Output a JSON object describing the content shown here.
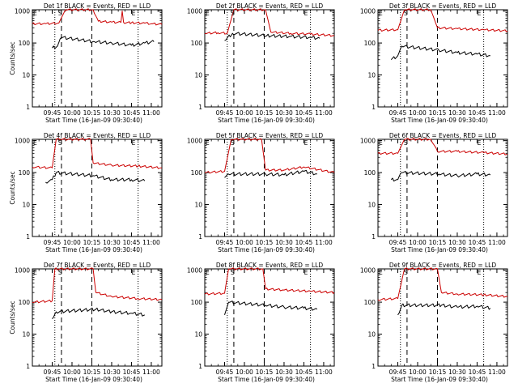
{
  "chart_data": [
    {
      "type": "line",
      "title": "Det 1f BLACK = Events, RED = LLD",
      "xlabel": "Start Time (16-Jan-09 09:30:40)",
      "ylabel": "Counts/sec",
      "x_ticks": [
        "09:45",
        "10:00",
        "10:15",
        "10:30",
        "10:45",
        "11:00"
      ],
      "y_ticks": [
        "1",
        "10",
        "100",
        "1000"
      ],
      "ylim": [
        1,
        1100
      ],
      "log_y": true,
      "markers": [
        "S",
        "E"
      ],
      "series": [
        {
          "values": [
            {
              "x": "09:30",
              "y": 400
            },
            {
              "x": "09:40",
              "y": 400
            },
            {
              "x": "09:50",
              "y": 420
            },
            {
              "x": "09:55",
              "y": 1100
            },
            {
              "x": "10:16",
              "y": 1100
            },
            {
              "x": "10:20",
              "y": 480
            },
            {
              "x": "10:30",
              "y": 450
            },
            {
              "x": "10:37",
              "y": 440
            },
            {
              "x": "10:38",
              "y": 1000
            },
            {
              "x": "10:39",
              "y": 440
            },
            {
              "x": "10:45",
              "y": 430
            },
            {
              "x": "10:55",
              "y": 420
            },
            {
              "x": "11:00",
              "y": 400
            },
            {
              "x": "11:08",
              "y": 380
            }
          ]
        },
        {
          "values": [
            {
              "x": "09:45",
              "y": 70
            },
            {
              "x": "09:49",
              "y": 80
            },
            {
              "x": "09:52",
              "y": 150
            },
            {
              "x": "10:17",
              "y": 110
            },
            {
              "x": "10:30",
              "y": 100
            },
            {
              "x": "10:45",
              "y": 85
            },
            {
              "x": "10:55",
              "y": 100
            },
            {
              "x": "11:02",
              "y": 110
            }
          ]
        }
      ]
    },
    {
      "type": "line",
      "title": "Det 2f BLACK = Events, RED = LLD",
      "xlabel": "Start Time (16-Jan-09 09:30:40)",
      "ylabel": "",
      "x_ticks": [
        "09:45",
        "10:00",
        "10:15",
        "10:30",
        "10:45",
        "11:00"
      ],
      "y_ticks": [
        "1",
        "10",
        "100",
        "1000"
      ],
      "ylim": [
        1,
        1100
      ],
      "log_y": true,
      "markers": [
        "S",
        "E"
      ],
      "series": [
        {
          "values": [
            {
              "x": "09:30",
              "y": 200
            },
            {
              "x": "09:40",
              "y": 210
            },
            {
              "x": "09:47",
              "y": 200
            },
            {
              "x": "09:52",
              "y": 1100
            },
            {
              "x": "10:16",
              "y": 1100
            },
            {
              "x": "10:20",
              "y": 220
            },
            {
              "x": "10:35",
              "y": 200
            },
            {
              "x": "10:50",
              "y": 190
            },
            {
              "x": "11:08",
              "y": 170
            }
          ]
        },
        {
          "values": [
            {
              "x": "09:45",
              "y": 120
            },
            {
              "x": "09:51",
              "y": 200
            },
            {
              "x": "10:17",
              "y": 170
            },
            {
              "x": "10:35",
              "y": 160
            },
            {
              "x": "10:50",
              "y": 150
            },
            {
              "x": "10:57",
              "y": 140
            }
          ]
        }
      ]
    },
    {
      "type": "line",
      "title": "Det 3f BLACK = Events, RED = LLD",
      "xlabel": "Start Time (16-Jan-09 09:30:40)",
      "ylabel": "",
      "x_ticks": [
        "09:45",
        "10:00",
        "10:15",
        "10:30",
        "10:45",
        "11:00"
      ],
      "y_ticks": [
        "1",
        "10",
        "100",
        "1000"
      ],
      "ylim": [
        1,
        1100
      ],
      "log_y": true,
      "markers": [
        "S",
        "E"
      ],
      "series": [
        {
          "values": [
            {
              "x": "09:30",
              "y": 250
            },
            {
              "x": "09:45",
              "y": 260
            },
            {
              "x": "09:50",
              "y": 1100
            },
            {
              "x": "10:10",
              "y": 1100
            },
            {
              "x": "10:15",
              "y": 300
            },
            {
              "x": "10:30",
              "y": 280
            },
            {
              "x": "10:50",
              "y": 260
            },
            {
              "x": "11:08",
              "y": 240
            }
          ]
        },
        {
          "values": [
            {
              "x": "09:40",
              "y": 30
            },
            {
              "x": "09:45",
              "y": 40
            },
            {
              "x": "09:48",
              "y": 80
            },
            {
              "x": "10:16",
              "y": 60
            },
            {
              "x": "10:30",
              "y": 50
            },
            {
              "x": "10:45",
              "y": 45
            },
            {
              "x": "10:55",
              "y": 40
            }
          ]
        }
      ]
    },
    {
      "type": "line",
      "title": "Det 4f BLACK = Events, RED = LLD",
      "xlabel": "Start Time (16-Jan-09 09:30:40)",
      "ylabel": "Counts/sec",
      "x_ticks": [
        "09:45",
        "10:00",
        "10:15",
        "10:30",
        "10:45",
        "11:00"
      ],
      "y_ticks": [
        "1",
        "10",
        "100",
        "1000"
      ],
      "ylim": [
        1,
        1100
      ],
      "log_y": true,
      "markers": [
        "S",
        "E"
      ],
      "series": [
        {
          "values": [
            {
              "x": "09:30",
              "y": 150
            },
            {
              "x": "09:45",
              "y": 140
            },
            {
              "x": "09:48",
              "y": 1100
            },
            {
              "x": "10:14",
              "y": 1100
            },
            {
              "x": "10:16",
              "y": 200
            },
            {
              "x": "10:30",
              "y": 170
            },
            {
              "x": "10:50",
              "y": 160
            },
            {
              "x": "11:08",
              "y": 140
            }
          ]
        },
        {
          "values": [
            {
              "x": "09:40",
              "y": 50
            },
            {
              "x": "09:45",
              "y": 60
            },
            {
              "x": "09:48",
              "y": 100
            },
            {
              "x": "10:16",
              "y": 80
            },
            {
              "x": "10:30",
              "y": 60
            },
            {
              "x": "10:45",
              "y": 60
            },
            {
              "x": "10:55",
              "y": 55
            }
          ]
        }
      ]
    },
    {
      "type": "line",
      "title": "Det 5f BLACK = Events, RED = LLD",
      "xlabel": "Start Time (16-Jan-09 09:30:40)",
      "ylabel": "",
      "x_ticks": [
        "09:45",
        "10:00",
        "10:15",
        "10:30",
        "10:45",
        "11:00"
      ],
      "y_ticks": [
        "1",
        "10",
        "100",
        "1000"
      ],
      "ylim": [
        1,
        1100
      ],
      "log_y": true,
      "markers": [
        "S",
        "E"
      ],
      "series": [
        {
          "values": [
            {
              "x": "09:30",
              "y": 100
            },
            {
              "x": "09:45",
              "y": 110
            },
            {
              "x": "09:50",
              "y": 1100
            },
            {
              "x": "10:13",
              "y": 1100
            },
            {
              "x": "10:16",
              "y": 120
            },
            {
              "x": "10:30",
              "y": 120
            },
            {
              "x": "10:45",
              "y": 150
            },
            {
              "x": "11:08",
              "y": 100
            }
          ]
        },
        {
          "values": [
            {
              "x": "09:45",
              "y": 70
            },
            {
              "x": "09:48",
              "y": 90
            },
            {
              "x": "10:16",
              "y": 90
            },
            {
              "x": "10:30",
              "y": 85
            },
            {
              "x": "10:45",
              "y": 110
            },
            {
              "x": "10:55",
              "y": 90
            }
          ]
        }
      ]
    },
    {
      "type": "line",
      "title": "Det 6f BLACK = Events, RED = LLD",
      "xlabel": "Start Time (16-Jan-09 09:30:40)",
      "ylabel": "",
      "x_ticks": [
        "09:45",
        "10:00",
        "10:15",
        "10:30",
        "10:45",
        "11:00"
      ],
      "y_ticks": [
        "1",
        "10",
        "100",
        "1000"
      ],
      "ylim": [
        1,
        1100
      ],
      "log_y": true,
      "markers": [
        "S",
        "E"
      ],
      "series": [
        {
          "values": [
            {
              "x": "09:30",
              "y": 400
            },
            {
              "x": "09:45",
              "y": 400
            },
            {
              "x": "09:50",
              "y": 1100
            },
            {
              "x": "10:10",
              "y": 1100
            },
            {
              "x": "10:15",
              "y": 460
            },
            {
              "x": "10:30",
              "y": 460
            },
            {
              "x": "10:50",
              "y": 420
            },
            {
              "x": "11:08",
              "y": 380
            }
          ]
        },
        {
          "values": [
            {
              "x": "09:40",
              "y": 60
            },
            {
              "x": "09:45",
              "y": 60
            },
            {
              "x": "09:48",
              "y": 100
            },
            {
              "x": "10:16",
              "y": 90
            },
            {
              "x": "10:30",
              "y": 80
            },
            {
              "x": "10:45",
              "y": 90
            },
            {
              "x": "10:55",
              "y": 85
            }
          ]
        }
      ]
    },
    {
      "type": "line",
      "title": "Det 7f BLACK = Events, RED = LLD",
      "xlabel": "Start Time (16-Jan-09 09:30:40)",
      "ylabel": "Counts/sec",
      "x_ticks": [
        "09:45",
        "10:00",
        "10:15",
        "10:30",
        "10:45",
        "11:00"
      ],
      "y_ticks": [
        "1",
        "10",
        "100",
        "1000"
      ],
      "ylim": [
        1,
        1100
      ],
      "log_y": true,
      "markers": [
        "S",
        "E"
      ],
      "series": [
        {
          "values": [
            {
              "x": "09:30",
              "y": 100
            },
            {
              "x": "09:45",
              "y": 110
            },
            {
              "x": "09:47",
              "y": 1100
            },
            {
              "x": "10:16",
              "y": 1100
            },
            {
              "x": "10:18",
              "y": 200
            },
            {
              "x": "10:30",
              "y": 150
            },
            {
              "x": "10:50",
              "y": 130
            },
            {
              "x": "11:08",
              "y": 120
            }
          ]
        },
        {
          "values": [
            {
              "x": "09:45",
              "y": 30
            },
            {
              "x": "09:48",
              "y": 50
            },
            {
              "x": "10:18",
              "y": 60
            },
            {
              "x": "10:30",
              "y": 50
            },
            {
              "x": "10:45",
              "y": 45
            },
            {
              "x": "10:55",
              "y": 40
            }
          ]
        }
      ]
    },
    {
      "type": "line",
      "title": "Det 8f BLACK = Events, RED = LLD",
      "xlabel": "Start Time (16-Jan-09 09:30:40)",
      "ylabel": "",
      "x_ticks": [
        "09:45",
        "10:00",
        "10:15",
        "10:30",
        "10:45",
        "11:00"
      ],
      "y_ticks": [
        "1",
        "10",
        "100",
        "1000"
      ],
      "ylim": [
        1,
        1100
      ],
      "log_y": true,
      "markers": [
        "S",
        "E"
      ],
      "series": [
        {
          "values": [
            {
              "x": "09:30",
              "y": 180
            },
            {
              "x": "09:45",
              "y": 190
            },
            {
              "x": "09:48",
              "y": 1100
            },
            {
              "x": "10:14",
              "y": 1100
            },
            {
              "x": "10:16",
              "y": 260
            },
            {
              "x": "10:30",
              "y": 240
            },
            {
              "x": "10:50",
              "y": 220
            },
            {
              "x": "11:08",
              "y": 200
            }
          ]
        },
        {
          "values": [
            {
              "x": "09:45",
              "y": 40
            },
            {
              "x": "09:48",
              "y": 100
            },
            {
              "x": "10:16",
              "y": 80
            },
            {
              "x": "10:30",
              "y": 70
            },
            {
              "x": "10:45",
              "y": 65
            },
            {
              "x": "10:55",
              "y": 60
            }
          ]
        }
      ]
    },
    {
      "type": "line",
      "title": "Det 9f BLACK = Events, RED = LLD",
      "xlabel": "Start Time (16-Jan-09 09:30:40)",
      "ylabel": "",
      "x_ticks": [
        "09:45",
        "10:00",
        "10:15",
        "10:30",
        "10:45",
        "11:00"
      ],
      "y_ticks": [
        "1",
        "10",
        "100",
        "1000"
      ],
      "ylim": [
        1,
        1100
      ],
      "log_y": true,
      "markers": [
        "S",
        "E"
      ],
      "series": [
        {
          "values": [
            {
              "x": "09:30",
              "y": 120
            },
            {
              "x": "09:45",
              "y": 130
            },
            {
              "x": "09:50",
              "y": 1100
            },
            {
              "x": "10:15",
              "y": 1100
            },
            {
              "x": "10:18",
              "y": 200
            },
            {
              "x": "10:30",
              "y": 180
            },
            {
              "x": "10:50",
              "y": 170
            },
            {
              "x": "11:08",
              "y": 150
            }
          ]
        },
        {
          "values": [
            {
              "x": "09:45",
              "y": 40
            },
            {
              "x": "09:48",
              "y": 80
            },
            {
              "x": "10:18",
              "y": 80
            },
            {
              "x": "10:30",
              "y": 70
            },
            {
              "x": "10:45",
              "y": 75
            },
            {
              "x": "10:55",
              "y": 65
            }
          ]
        }
      ]
    }
  ],
  "colors": {
    "lld": "#cc0000",
    "events": "#000000",
    "axes": "#000000"
  }
}
